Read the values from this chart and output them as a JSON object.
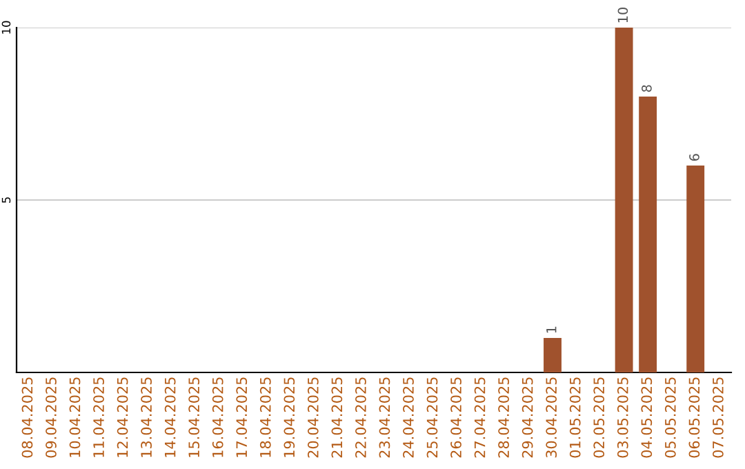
{
  "chart_data": {
    "type": "bar",
    "categories": [
      "08.04.2025",
      "09.04.2025",
      "10.04.2025",
      "11.04.2025",
      "12.04.2025",
      "13.04.2025",
      "14.04.2025",
      "15.04.2025",
      "16.04.2025",
      "17.04.2025",
      "18.04.2025",
      "19.04.2025",
      "20.04.2025",
      "21.04.2025",
      "22.04.2025",
      "23.04.2025",
      "24.04.2025",
      "25.04.2025",
      "26.04.2025",
      "27.04.2025",
      "28.04.2025",
      "29.04.2025",
      "30.04.2025",
      "01.05.2025",
      "02.05.2025",
      "03.05.2025",
      "04.05.2025",
      "05.05.2025",
      "06.05.2025",
      "07.05.2025"
    ],
    "values": [
      0,
      0,
      0,
      0,
      0,
      0,
      0,
      0,
      0,
      0,
      0,
      0,
      0,
      0,
      0,
      0,
      0,
      0,
      0,
      0,
      0,
      0,
      1,
      0,
      0,
      10,
      8,
      0,
      6,
      0
    ],
    "value_labels": [
      null,
      null,
      null,
      null,
      null,
      null,
      null,
      null,
      null,
      null,
      null,
      null,
      null,
      null,
      null,
      null,
      null,
      null,
      null,
      null,
      null,
      null,
      "1",
      null,
      null,
      "10",
      "8",
      null,
      "6",
      null
    ],
    "color": "#a0522d",
    "ylim": [
      0,
      10
    ],
    "yticks": [
      5,
      10
    ],
    "grid": "y"
  }
}
